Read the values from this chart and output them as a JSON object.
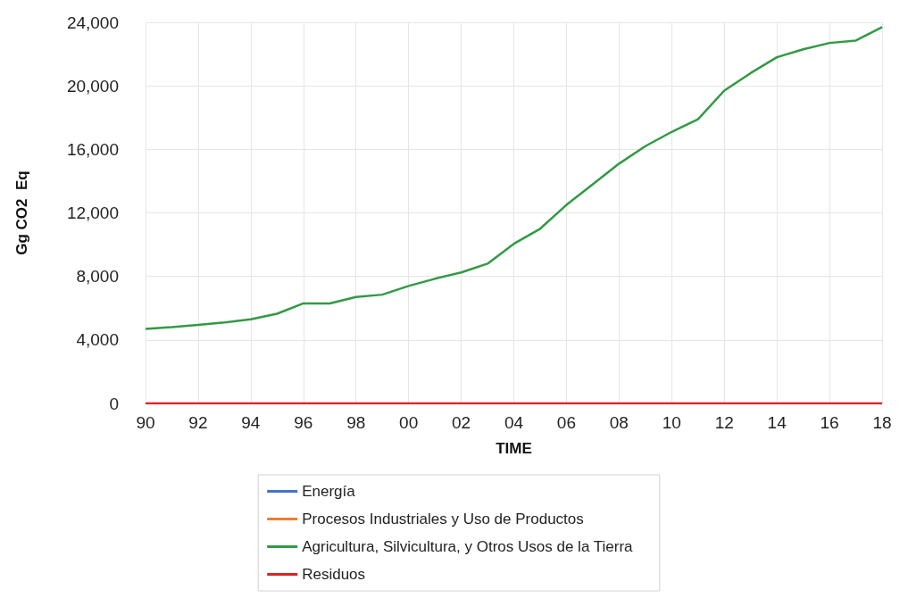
{
  "chart_data": {
    "type": "line",
    "xlabel": "TIME",
    "ylabel": "Gg CO2  Eq",
    "categories": [
      "90",
      null,
      "92",
      null,
      "94",
      null,
      "96",
      null,
      "98",
      null,
      "00",
      null,
      "02",
      null,
      "04",
      null,
      "06",
      null,
      "08",
      null,
      "10",
      null,
      "12",
      null,
      "14",
      null,
      "16",
      null,
      "18"
    ],
    "series": [
      {
        "name": "Energía",
        "color": "#4472c4",
        "values": [
          null,
          null,
          null,
          null,
          null,
          null,
          null,
          null,
          null,
          null,
          null,
          null,
          null,
          null,
          null,
          null,
          null,
          null,
          null,
          null,
          null,
          null,
          null,
          null,
          null,
          null,
          null,
          null,
          null
        ]
      },
      {
        "name": "Procesos Industriales y Uso de Productos",
        "color": "#ed7d31",
        "values": [
          null,
          null,
          null,
          null,
          null,
          null,
          null,
          null,
          null,
          null,
          null,
          null,
          null,
          null,
          null,
          null,
          null,
          null,
          null,
          null,
          null,
          null,
          null,
          null,
          null,
          null,
          null,
          null,
          null
        ]
      },
      {
        "name": "Agricultura, Silvicultura, y Otros Usos de la Tierra",
        "color": "#339944",
        "values": [
          4700,
          4800,
          4950,
          5100,
          5300,
          5650,
          6300,
          6300,
          6700,
          6850,
          7400,
          7850,
          8250,
          8800,
          10050,
          11000,
          12500,
          13800,
          15100,
          16200,
          17100,
          17900,
          19700,
          20800,
          21800,
          22300,
          22700,
          22850,
          23700
        ]
      },
      {
        "name": "Residuos",
        "color": "#dd2222",
        "values": [
          0,
          0,
          0,
          0,
          0,
          0,
          0,
          0,
          0,
          0,
          0,
          0,
          0,
          0,
          0,
          0,
          0,
          0,
          0,
          0,
          0,
          0,
          0,
          0,
          0,
          0,
          0,
          0,
          0
        ]
      }
    ],
    "ylim": [
      0,
      24000
    ],
    "yticks": [
      {
        "value": 0,
        "label": "0"
      },
      {
        "value": 4000,
        "label": "4,000"
      },
      {
        "value": 8000,
        "label": "8,000"
      },
      {
        "value": 12000,
        "label": "12,000"
      },
      {
        "value": 16000,
        "label": "16,000"
      },
      {
        "value": 20000,
        "label": "20,000"
      },
      {
        "value": 24000,
        "label": "24,000"
      }
    ],
    "grid": true,
    "legend": "bottom",
    "marker": "none",
    "line_style": "solid"
  }
}
